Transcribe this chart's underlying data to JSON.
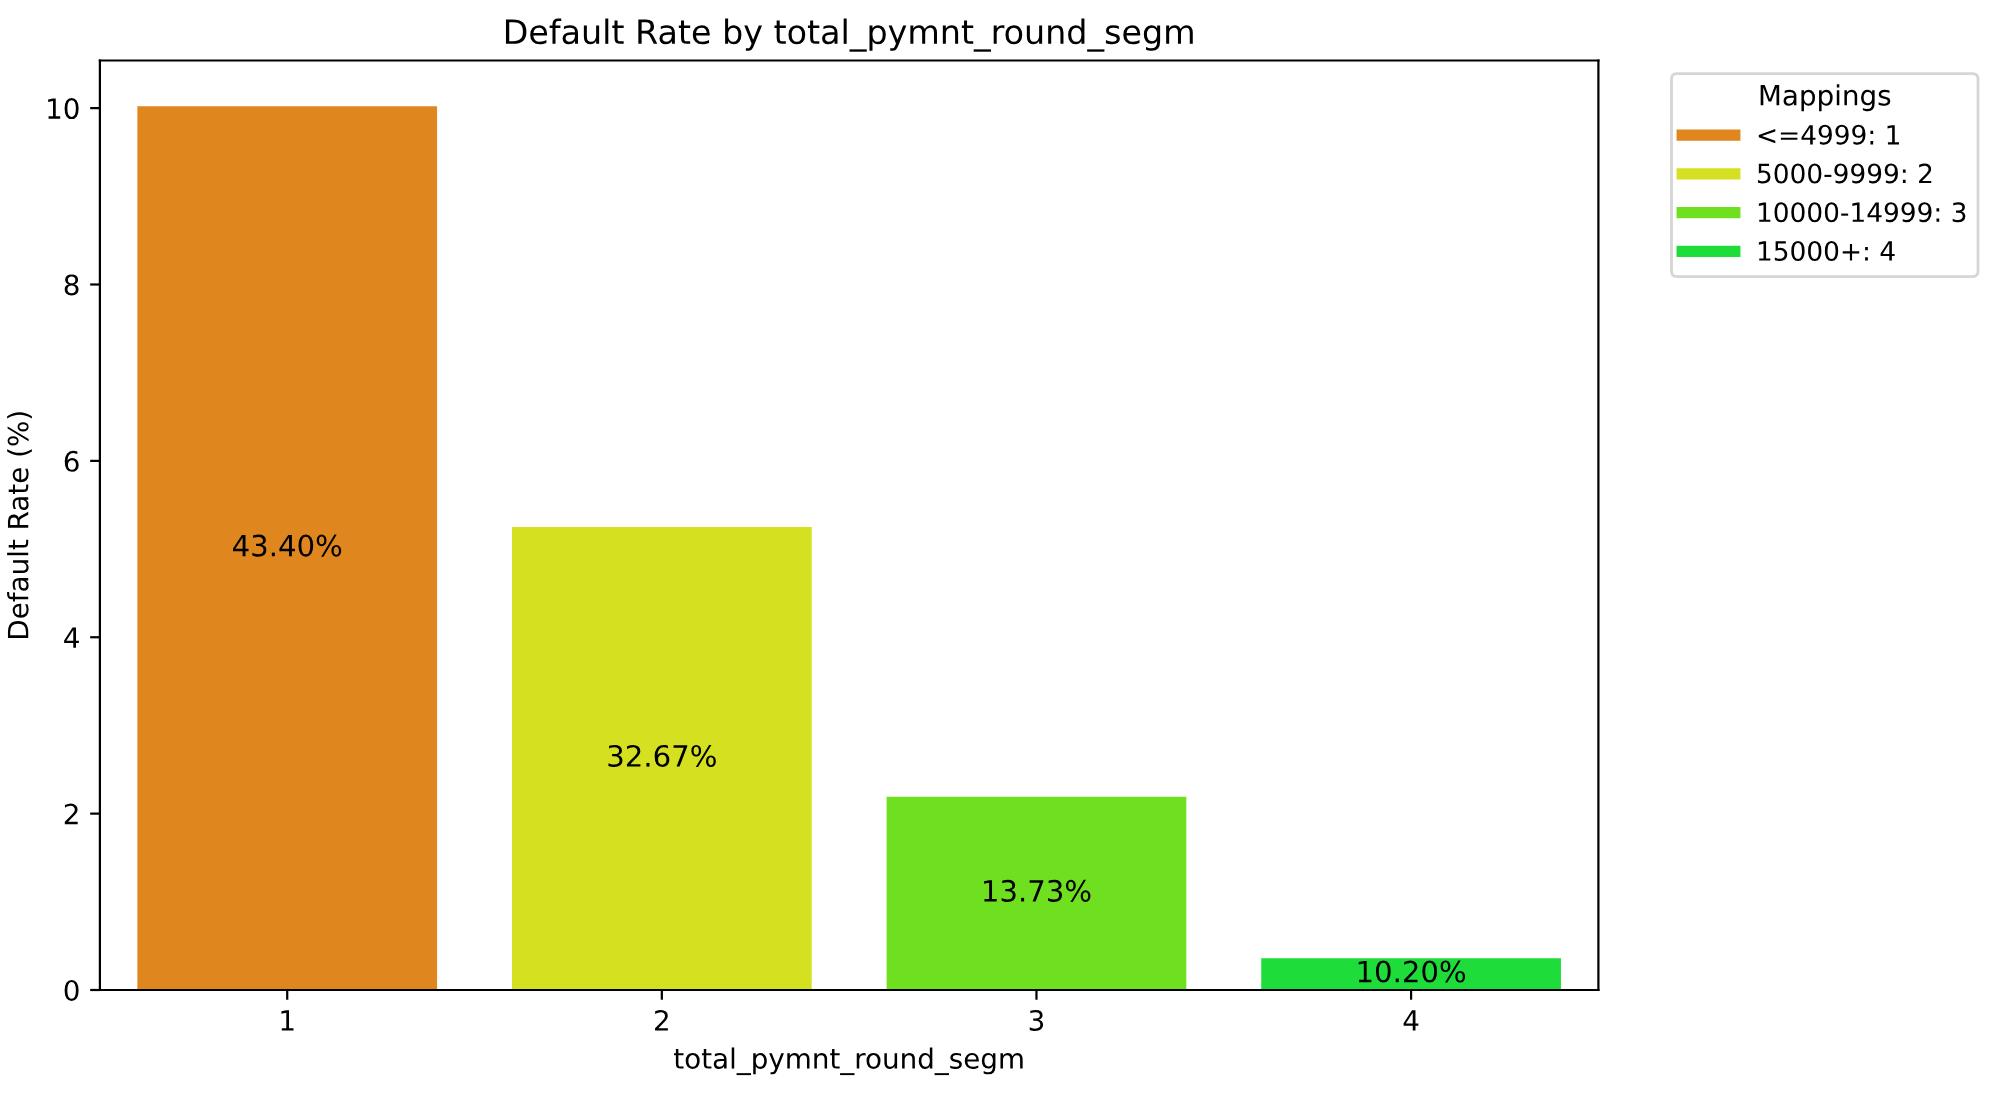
{
  "chart_data": {
    "type": "bar",
    "title": "Default Rate by total_pymnt_round_segm",
    "xlabel": "total_pymnt_round_segm",
    "ylabel": "Default Rate (%)",
    "legend_title": "Mappings",
    "categories": [
      "1",
      "2",
      "3",
      "4"
    ],
    "series": [
      {
        "name": "<=4999: 1",
        "color": "#e0861e",
        "values": [
          10.02,
          null,
          null,
          null
        ]
      },
      {
        "name": "5000-9999: 2",
        "color": "#d4e020",
        "values": [
          null,
          5.25,
          null,
          null
        ]
      },
      {
        "name": "10000-14999: 3",
        "color": "#6ee020",
        "values": [
          null,
          null,
          2.19,
          null
        ]
      },
      {
        "name": "15000+: 4",
        "color": "#1edc3a",
        "values": [
          null,
          null,
          null,
          0.36
        ]
      }
    ],
    "annotations": [
      "43.40%",
      "32.67%",
      "13.73%",
      "10.20%"
    ],
    "ylim": [
      0,
      10.54
    ],
    "yticks": [
      0,
      2,
      4,
      6,
      8,
      10
    ],
    "legend": "top right",
    "grid": false
  }
}
